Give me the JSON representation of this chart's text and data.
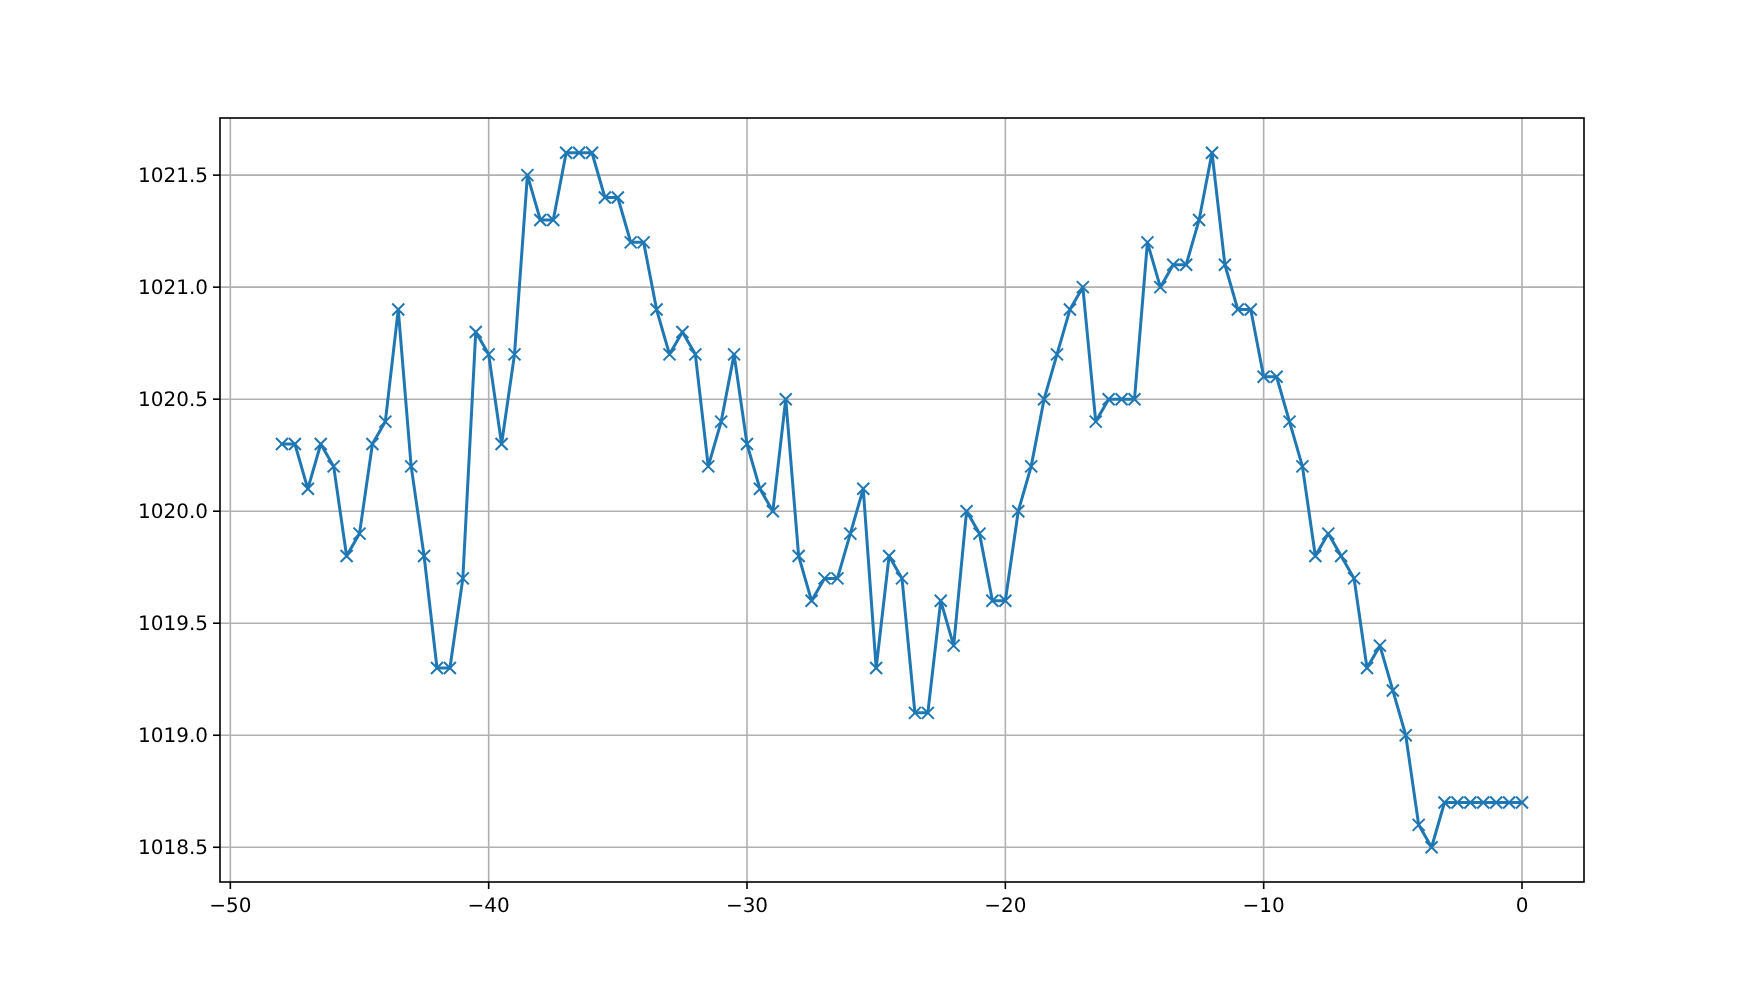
{
  "chart_data": {
    "type": "line",
    "marker": "cross",
    "line_style": "solid",
    "grid": true,
    "x": [
      -48,
      -47.5,
      -47,
      -46.5,
      -46,
      -45.5,
      -45,
      -44.5,
      -44,
      -43.5,
      -43,
      -42.5,
      -42,
      -41.5,
      -41,
      -40.5,
      -40,
      -39.5,
      -39,
      -38.5,
      -38,
      -37.5,
      -37,
      -36.5,
      -36,
      -35.5,
      -35,
      -34.5,
      -34,
      -33.5,
      -33,
      -32.5,
      -32,
      -31.5,
      -31,
      -30.5,
      -30,
      -29.5,
      -29,
      -28.5,
      -28,
      -27.5,
      -27,
      -26.5,
      -26,
      -25.5,
      -25,
      -24.5,
      -24,
      -23.5,
      -23,
      -22.5,
      -22,
      -21.5,
      -21,
      -20.5,
      -20,
      -19.5,
      -19,
      -18.5,
      -18,
      -17.5,
      -17,
      -16.5,
      -16,
      -15.5,
      -15,
      -14.5,
      -14,
      -13.5,
      -13,
      -12.5,
      -12,
      -11.5,
      -11,
      -10.5,
      -10,
      -9.5,
      -9,
      -8.5,
      -8,
      -7.5,
      -7,
      -6.5,
      -6,
      -5.5,
      -5,
      -4.5,
      -4,
      -3.5,
      -3,
      -2.5,
      -2,
      -1.5,
      -1,
      -0.5,
      0
    ],
    "series": [
      {
        "color": "#1f77b4",
        "values": [
          1020.3,
          1020.3,
          1020.1,
          1020.3,
          1020.2,
          1019.8,
          1019.9,
          1020.3,
          1020.4,
          1020.9,
          1020.2,
          1019.8,
          1019.3,
          1019.3,
          1019.7,
          1020.8,
          1020.7,
          1020.3,
          1020.7,
          1021.5,
          1021.3,
          1021.3,
          1021.6,
          1021.6,
          1021.6,
          1021.4,
          1021.4,
          1021.2,
          1021.2,
          1020.9,
          1020.7,
          1020.8,
          1020.7,
          1020.2,
          1020.4,
          1020.7,
          1020.3,
          1020.1,
          1020.0,
          1020.5,
          1019.8,
          1019.6,
          1019.7,
          1019.7,
          1019.9,
          1020.1,
          1019.3,
          1019.8,
          1019.7,
          1019.1,
          1019.1,
          1019.6,
          1019.4,
          1020.0,
          1019.9,
          1019.6,
          1019.6,
          1020.0,
          1020.2,
          1020.5,
          1020.7,
          1020.9,
          1021.0,
          1020.4,
          1020.5,
          1020.5,
          1020.5,
          1021.2,
          1021.0,
          1021.1,
          1021.1,
          1021.3,
          1021.6,
          1021.1,
          1020.9,
          1020.9,
          1020.6,
          1020.6,
          1020.4,
          1020.2,
          1019.8,
          1019.9,
          1019.8,
          1019.7,
          1019.3,
          1019.4,
          1019.2,
          1019.0,
          1018.6,
          1018.5,
          1018.7,
          1018.7,
          1018.7,
          1018.7,
          1018.7,
          1018.7,
          1018.7
        ]
      }
    ],
    "xlim": [
      -50.4,
      2.4
    ],
    "xticks": [
      {
        "value": -50,
        "label": "−50"
      },
      {
        "value": -40,
        "label": "−40"
      },
      {
        "value": -30,
        "label": "−30"
      },
      {
        "value": -20,
        "label": "−20"
      },
      {
        "value": -10,
        "label": "−10"
      },
      0
    ],
    "ylim": [
      1018.345,
      1021.755
    ],
    "yticks": [
      {
        "value": 1018.5,
        "label": "1018.5"
      },
      {
        "value": 1019,
        "label": "1019.0"
      },
      {
        "value": 1019.5,
        "label": "1019.5"
      },
      {
        "value": 1020,
        "label": "1020.0"
      },
      {
        "value": 1020.5,
        "label": "1020.5"
      },
      {
        "value": 1021,
        "label": "1021.0"
      },
      {
        "value": 1021.5,
        "label": "1021.5"
      }
    ]
  }
}
